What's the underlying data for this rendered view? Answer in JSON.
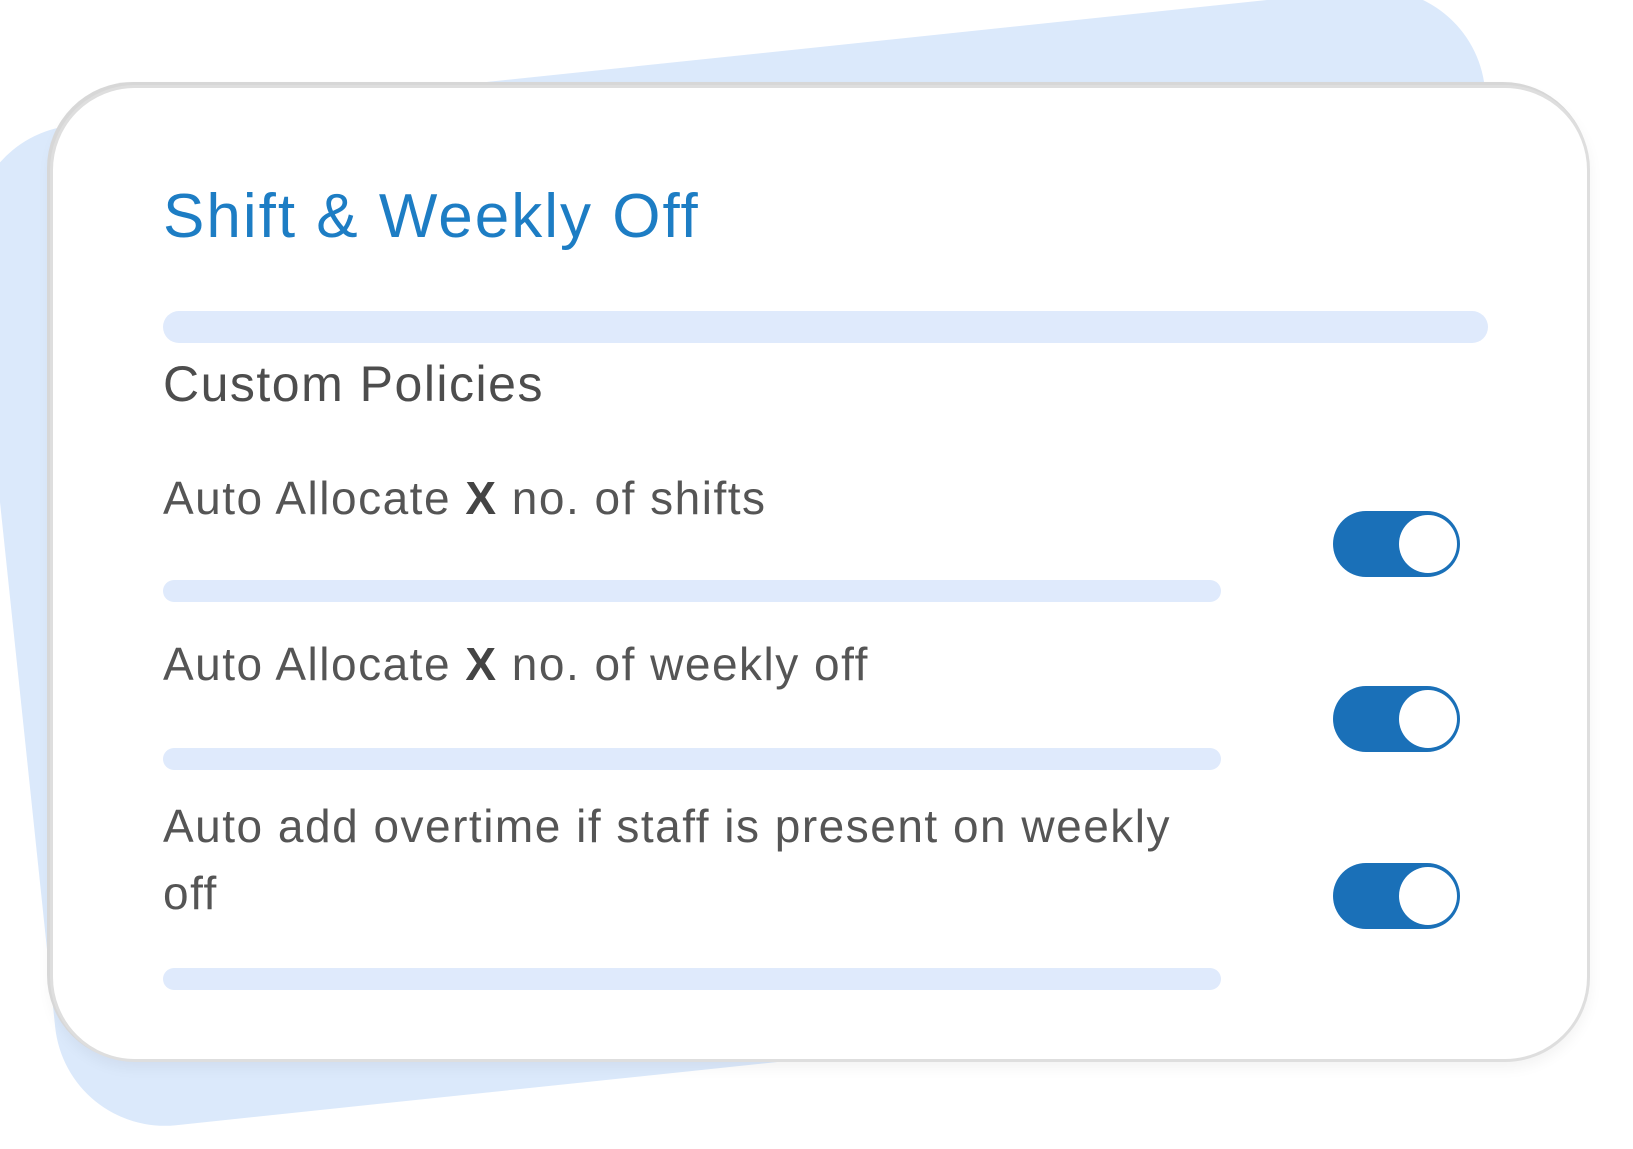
{
  "card": {
    "title": "Shift & Weekly Off",
    "section_heading": "Custom Policies",
    "policies": [
      {
        "label_pre": "Auto Allocate ",
        "label_bold": "X",
        "label_post": " no. of shifts",
        "toggle_state": "on"
      },
      {
        "label_pre": "Auto Allocate ",
        "label_bold": "X",
        "label_post": " no. of weekly off",
        "toggle_state": "on"
      },
      {
        "label_pre": "Auto add overtime if staff is present on weekly off",
        "label_bold": "",
        "label_post": "",
        "toggle_state": "on"
      }
    ],
    "colors": {
      "accent_blue": "#1d7dc4",
      "toggle_blue": "#1a70b8",
      "divider_light_blue": "#dfeafc",
      "backdrop_light_blue": "#dbe9fb",
      "text_gray": "#4d4d4d"
    }
  }
}
